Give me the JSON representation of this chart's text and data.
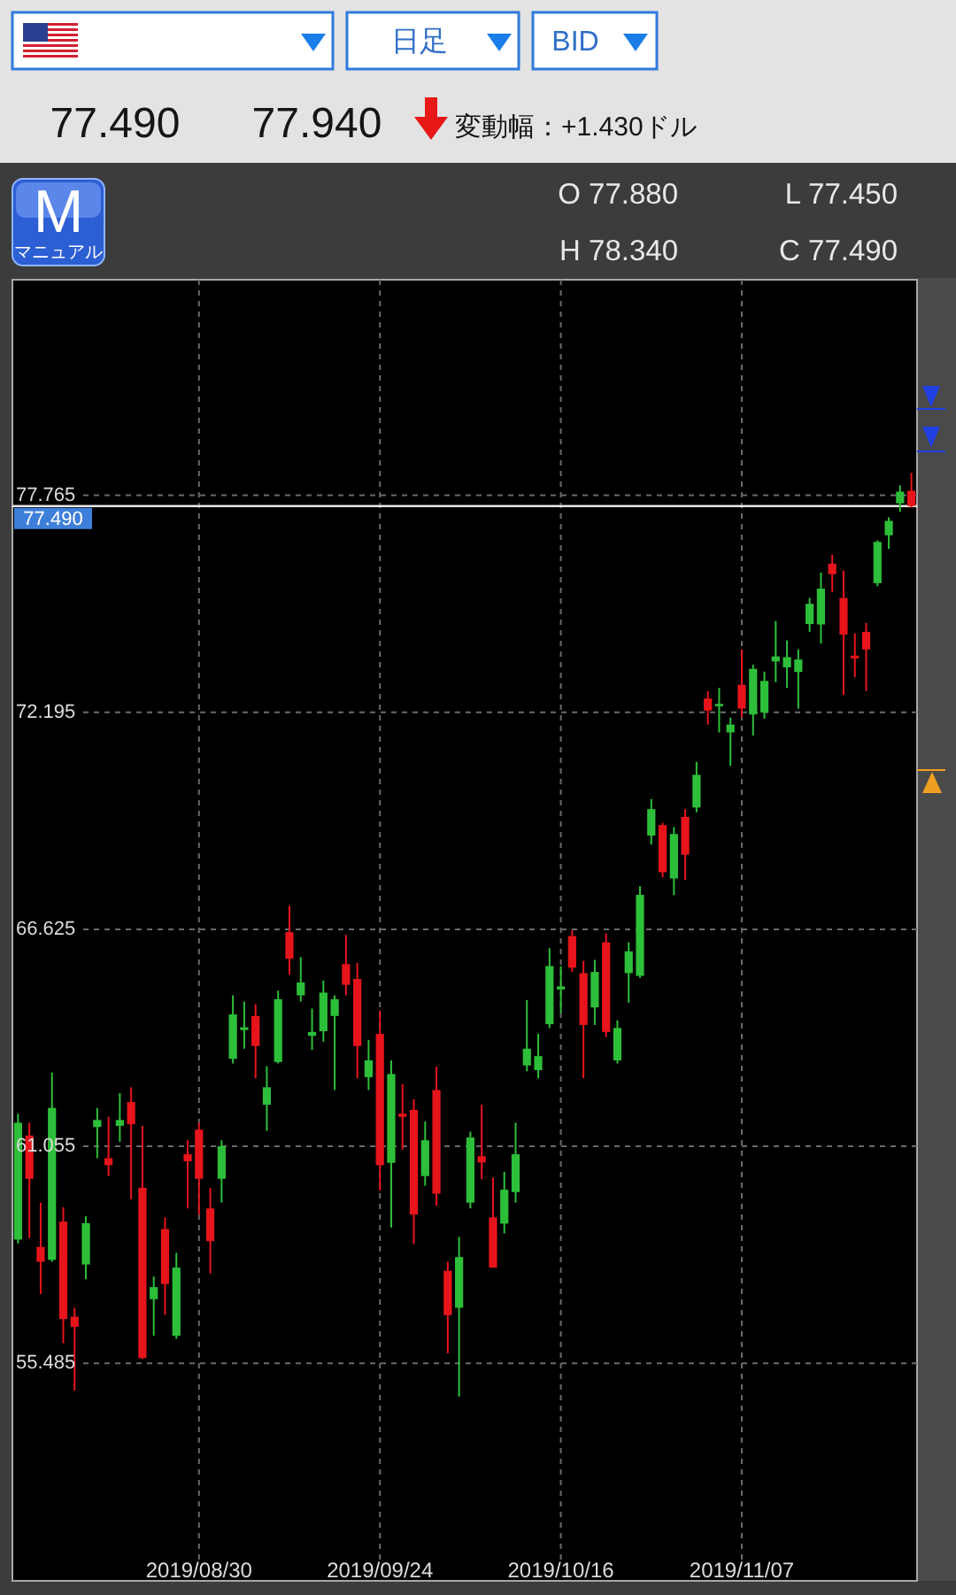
{
  "chart_data": {
    "type": "candlestick",
    "categories": [
      null,
      null,
      null,
      null,
      null,
      null,
      null,
      null,
      null,
      null,
      null,
      null,
      null,
      null,
      null,
      null,
      "2019/08/30",
      null,
      null,
      null,
      null,
      null,
      null,
      null,
      null,
      null,
      null,
      null,
      null,
      null,
      null,
      null,
      "2019/09/24",
      null,
      null,
      null,
      null,
      null,
      null,
      null,
      null,
      null,
      null,
      null,
      null,
      null,
      null,
      null,
      "2019/10/16",
      null,
      null,
      null,
      null,
      null,
      null,
      null,
      null,
      null,
      null,
      null,
      null,
      null,
      null,
      null,
      "2019/11/07",
      null,
      null,
      null,
      null,
      null,
      null,
      null,
      null,
      null,
      null,
      null,
      null,
      null,
      null,
      null
    ],
    "ohlc": [
      [
        58.66,
        61.89,
        58.56,
        61.66
      ],
      [
        61.33,
        61.66,
        58.7,
        60.22
      ],
      [
        58.47,
        59.61,
        57.26,
        58.09
      ],
      [
        58.14,
        62.95,
        58.09,
        62.04
      ],
      [
        59.12,
        59.49,
        56.0,
        56.62
      ],
      [
        56.68,
        56.91,
        54.78,
        56.42
      ],
      [
        58.02,
        59.26,
        57.64,
        59.08
      ],
      [
        61.55,
        62.04,
        60.75,
        61.73
      ],
      [
        60.75,
        61.81,
        60.29,
        60.57
      ],
      [
        61.58,
        62.42,
        61.17,
        61.73
      ],
      [
        62.19,
        62.57,
        59.69,
        61.62
      ],
      [
        59.99,
        61.58,
        55.59,
        55.62
      ],
      [
        57.13,
        57.71,
        56.19,
        57.44
      ],
      [
        58.93,
        59.23,
        56.73,
        57.52
      ],
      [
        56.19,
        58.32,
        56.11,
        57.94
      ],
      [
        60.85,
        61.21,
        59.46,
        60.67
      ],
      [
        61.48,
        61.66,
        59.3,
        60.22
      ],
      [
        59.46,
        59.99,
        57.79,
        58.62
      ],
      [
        60.22,
        61.21,
        59.61,
        61.06
      ],
      [
        63.3,
        64.93,
        63.18,
        64.44
      ],
      [
        64.04,
        64.77,
        63.56,
        64.11
      ],
      [
        64.4,
        64.7,
        62.8,
        63.63
      ],
      [
        62.12,
        63.11,
        61.45,
        62.57
      ],
      [
        63.22,
        65.05,
        63.18,
        64.83
      ],
      [
        66.55,
        67.23,
        65.46,
        65.87
      ],
      [
        64.93,
        65.91,
        64.77,
        65.26
      ],
      [
        63.89,
        64.59,
        63.53,
        63.99
      ],
      [
        64.01,
        65.31,
        63.74,
        65.0
      ],
      [
        64.4,
        64.93,
        62.5,
        64.83
      ],
      [
        65.73,
        66.48,
        64.93,
        65.2
      ],
      [
        65.35,
        65.76,
        62.8,
        63.63
      ],
      [
        62.83,
        63.78,
        62.5,
        63.26
      ],
      [
        63.94,
        64.54,
        59.92,
        60.57
      ],
      [
        60.63,
        63.26,
        58.97,
        62.91
      ],
      [
        61.89,
        62.65,
        60.97,
        61.81
      ],
      [
        61.99,
        62.26,
        58.55,
        59.3
      ],
      [
        60.29,
        61.69,
        60.04,
        61.21
      ],
      [
        62.5,
        63.1,
        59.53,
        59.84
      ],
      [
        57.86,
        58.09,
        55.74,
        56.72
      ],
      [
        56.91,
        58.73,
        54.63,
        58.21
      ],
      [
        59.61,
        61.43,
        59.46,
        61.28
      ],
      [
        60.8,
        62.12,
        60.21,
        60.64
      ],
      [
        59.23,
        60.25,
        57.94,
        57.94
      ],
      [
        59.07,
        60.4,
        58.82,
        59.94
      ],
      [
        59.88,
        61.66,
        59.61,
        60.85
      ],
      [
        63.13,
        64.81,
        62.98,
        63.56
      ],
      [
        63.01,
        63.94,
        62.8,
        63.37
      ],
      [
        64.19,
        66.14,
        64.09,
        65.68
      ],
      [
        65.08,
        65.68,
        64.47,
        65.16
      ],
      [
        66.45,
        66.6,
        65.53,
        65.64
      ],
      [
        65.5,
        65.81,
        62.8,
        64.17
      ],
      [
        64.62,
        65.84,
        64.17,
        65.53
      ],
      [
        66.29,
        66.52,
        63.86,
        63.99
      ],
      [
        63.26,
        64.29,
        63.18,
        64.09
      ],
      [
        65.5,
        66.29,
        64.74,
        66.06
      ],
      [
        65.43,
        67.73,
        65.38,
        67.51
      ],
      [
        69.03,
        69.97,
        68.8,
        69.71
      ],
      [
        69.3,
        69.36,
        67.96,
        68.09
      ],
      [
        67.93,
        69.25,
        67.5,
        69.07
      ],
      [
        69.51,
        69.71,
        67.89,
        68.54
      ],
      [
        69.75,
        70.92,
        69.63,
        70.59
      ],
      [
        72.55,
        72.74,
        71.88,
        72.24
      ],
      [
        72.35,
        72.82,
        71.68,
        72.41
      ],
      [
        71.68,
        72.06,
        70.82,
        71.88
      ],
      [
        72.9,
        73.81,
        72.06,
        72.29
      ],
      [
        72.14,
        73.42,
        71.6,
        73.31
      ],
      [
        72.19,
        73.24,
        72.03,
        73.0
      ],
      [
        73.5,
        74.54,
        72.97,
        73.63
      ],
      [
        73.35,
        74.04,
        72.82,
        73.61
      ],
      [
        73.23,
        73.81,
        72.29,
        73.55
      ],
      [
        74.46,
        75.13,
        74.26,
        74.98
      ],
      [
        74.45,
        75.78,
        73.96,
        75.37
      ],
      [
        76.01,
        76.24,
        75.28,
        75.74
      ],
      [
        75.13,
        75.83,
        72.64,
        74.19
      ],
      [
        73.65,
        74.22,
        73.1,
        73.58
      ],
      [
        74.26,
        74.49,
        72.74,
        73.81
      ],
      [
        75.51,
        76.61,
        75.43,
        76.57
      ],
      [
        76.74,
        77.2,
        76.39,
        77.11
      ],
      [
        77.56,
        78.02,
        77.34,
        77.86
      ],
      [
        77.88,
        78.34,
        77.45,
        77.49
      ]
    ],
    "colors": [
      "#2dbf3a",
      "#e8141b",
      "#e8141b",
      "#2dbf3a",
      "#e8141b",
      "#e8141b",
      "#2dbf3a",
      "#2dbf3a",
      "#e8141b",
      "#2dbf3a",
      "#e8141b",
      "#e8141b",
      "#2dbf3a",
      "#e8141b",
      "#2dbf3a",
      "#e8141b",
      "#e8141b",
      "#e8141b",
      "#2dbf3a",
      "#2dbf3a",
      "#2dbf3a",
      "#e8141b",
      "#2dbf3a",
      "#2dbf3a",
      "#e8141b",
      "#2dbf3a",
      "#2dbf3a",
      "#2dbf3a",
      "#2dbf3a",
      "#e8141b",
      "#e8141b",
      "#2dbf3a",
      "#e8141b",
      "#2dbf3a",
      "#e8141b",
      "#e8141b",
      "#2dbf3a",
      "#e8141b",
      "#e8141b",
      "#2dbf3a",
      "#2dbf3a",
      "#e8141b",
      "#e8141b",
      "#2dbf3a",
      "#2dbf3a",
      "#2dbf3a",
      "#2dbf3a",
      "#2dbf3a",
      "#2dbf3a",
      "#e8141b",
      "#e8141b",
      "#2dbf3a",
      "#e8141b",
      "#2dbf3a",
      "#2dbf3a",
      "#2dbf3a",
      "#2dbf3a",
      "#e8141b",
      "#2dbf3a",
      "#e8141b",
      "#2dbf3a",
      "#e8141b",
      "#2dbf3a",
      "#2dbf3a",
      "#e8141b",
      "#2dbf3a",
      "#2dbf3a",
      "#2dbf3a",
      "#2dbf3a",
      "#2dbf3a",
      "#2dbf3a",
      "#2dbf3a",
      "#e8141b",
      "#e8141b",
      "#e8141b",
      "#e8141b",
      "#2dbf3a",
      "#2dbf3a",
      "#2dbf3a",
      "#e8141b"
    ],
    "ylim": [
      49.9,
      83.3
    ],
    "yticks": [
      55.485,
      61.055,
      66.625,
      72.195,
      77.765
    ],
    "grid": true,
    "ref_lines": [
      {
        "axis": "y",
        "value": 77.49,
        "label": "77.490",
        "color": "#e6e6e6"
      }
    ],
    "annotations": [
      "日足",
      "BID",
      "77.490",
      "77.940",
      "変動幅：+1.430ドル",
      "M",
      "マニュアル",
      "O 77.880",
      "L 77.450",
      "H 78.340",
      "C 77.490"
    ]
  }
}
